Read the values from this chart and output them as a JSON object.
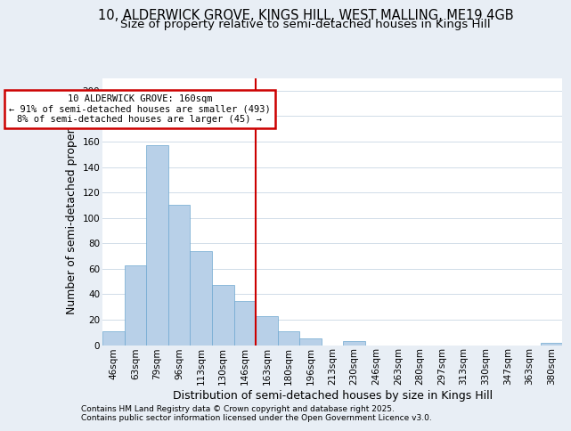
{
  "title1": "10, ALDERWICK GROVE, KINGS HILL, WEST MALLING, ME19 4GB",
  "title2": "Size of property relative to semi-detached houses in Kings Hill",
  "xlabel": "Distribution of semi-detached houses by size in Kings Hill",
  "ylabel": "Number of semi-detached properties",
  "footnote1": "Contains HM Land Registry data © Crown copyright and database right 2025.",
  "footnote2": "Contains public sector information licensed under the Open Government Licence v3.0.",
  "annotation_line1": "10 ALDERWICK GROVE: 160sqm",
  "annotation_line2": "← 91% of semi-detached houses are smaller (493)",
  "annotation_line3": "8% of semi-detached houses are larger (45) →",
  "vline_color": "#cc0000",
  "annotation_box_edge": "#cc0000",
  "categories": [
    "46sqm",
    "63sqm",
    "79sqm",
    "96sqm",
    "113sqm",
    "130sqm",
    "146sqm",
    "163sqm",
    "180sqm",
    "196sqm",
    "213sqm",
    "230sqm",
    "246sqm",
    "263sqm",
    "280sqm",
    "297sqm",
    "313sqm",
    "330sqm",
    "347sqm",
    "363sqm",
    "380sqm"
  ],
  "values": [
    11,
    63,
    157,
    110,
    74,
    47,
    35,
    23,
    11,
    5,
    0,
    3,
    0,
    0,
    0,
    0,
    0,
    0,
    0,
    0,
    2
  ],
  "bar_color": "#b8d0e8",
  "bar_edge_color": "#6ea8d0",
  "ylim": [
    0,
    210
  ],
  "yticks": [
    0,
    20,
    40,
    60,
    80,
    100,
    120,
    140,
    160,
    180,
    200
  ],
  "background_color": "#e8eef5",
  "plot_bg_color": "#ffffff",
  "grid_color": "#d0dce8",
  "title_fontsize": 10.5,
  "subtitle_fontsize": 9.5,
  "tick_fontsize": 7.5,
  "label_fontsize": 9,
  "footnote_fontsize": 6.5,
  "vline_x_idx": 7.0
}
